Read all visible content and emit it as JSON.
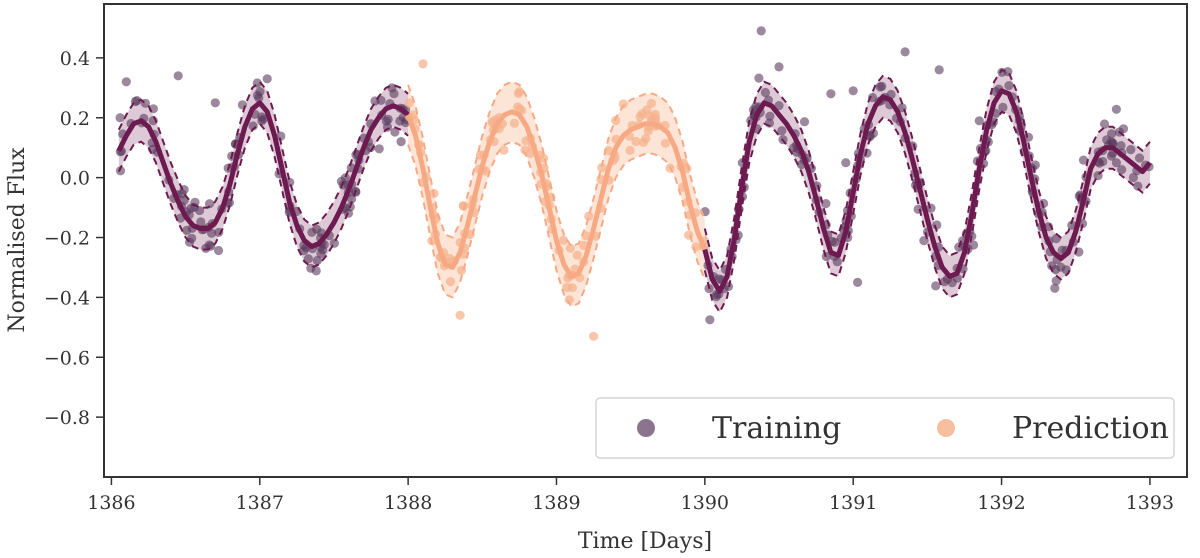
{
  "chart_data": {
    "type": "scatter",
    "title": "",
    "xlabel": "Time [Days]",
    "ylabel": "Normalised Flux",
    "xlim": [
      1385.95,
      1393.25
    ],
    "ylim": [
      -1.0,
      0.58
    ],
    "x_ticks": [
      1386,
      1387,
      1388,
      1389,
      1390,
      1391,
      1392,
      1393
    ],
    "x_tick_labels": [
      "1386",
      "1387",
      "1388",
      "1389",
      "1390",
      "1391",
      "1392",
      "1393"
    ],
    "y_ticks": [
      0.4,
      0.2,
      0.0,
      -0.2,
      -0.4,
      -0.6,
      -0.8
    ],
    "y_tick_labels": [
      "0.4",
      "0.2",
      "0.0",
      "−0.2",
      "−0.4",
      "−0.6",
      "−0.8"
    ],
    "grid": false,
    "legend_position": "bottom-right",
    "colors": {
      "training_points": "#5a3a5e",
      "training_line": "#6d1a50",
      "training_band": "#b58aa4",
      "prediction_points": "#f6b38e",
      "prediction_line": "#f7a983",
      "prediction_band": "#f9c6a6",
      "axis": "#333333"
    },
    "series": [
      {
        "name": "Training",
        "role": "posterior mean (solid) with uncertainty band (dashed)",
        "x_ranges": [
          [
            1386.05,
            1388.0
          ],
          [
            1390.0,
            1393.0
          ]
        ],
        "x": [
          1386.05,
          1386.1,
          1386.15,
          1386.2,
          1386.25,
          1386.3,
          1386.35,
          1386.4,
          1386.45,
          1386.5,
          1386.55,
          1386.6,
          1386.65,
          1386.7,
          1386.75,
          1386.8,
          1386.85,
          1386.9,
          1386.95,
          1387.0,
          1387.05,
          1387.1,
          1387.15,
          1387.2,
          1387.25,
          1387.3,
          1387.35,
          1387.4,
          1387.45,
          1387.5,
          1387.55,
          1387.6,
          1387.65,
          1387.7,
          1387.75,
          1387.8,
          1387.85,
          1387.9,
          1387.95,
          1388.0,
          1390.0,
          1390.05,
          1390.1,
          1390.15,
          1390.2,
          1390.25,
          1390.3,
          1390.35,
          1390.4,
          1390.45,
          1390.5,
          1390.55,
          1390.6,
          1390.65,
          1390.7,
          1390.75,
          1390.8,
          1390.85,
          1390.9,
          1390.95,
          1391.0,
          1391.05,
          1391.1,
          1391.15,
          1391.2,
          1391.25,
          1391.3,
          1391.35,
          1391.4,
          1391.45,
          1391.5,
          1391.55,
          1391.6,
          1391.65,
          1391.7,
          1391.75,
          1391.8,
          1391.85,
          1391.9,
          1391.95,
          1392.0,
          1392.05,
          1392.1,
          1392.15,
          1392.2,
          1392.25,
          1392.3,
          1392.35,
          1392.4,
          1392.45,
          1392.5,
          1392.55,
          1392.6,
          1392.65,
          1392.7,
          1392.75,
          1392.8,
          1392.85,
          1392.9,
          1392.95,
          1393.0
        ],
        "mean": [
          0.09,
          0.14,
          0.18,
          0.19,
          0.17,
          0.12,
          0.05,
          -0.02,
          -0.08,
          -0.13,
          -0.16,
          -0.17,
          -0.17,
          -0.15,
          -0.1,
          -0.02,
          0.08,
          0.17,
          0.23,
          0.25,
          0.22,
          0.14,
          0.03,
          -0.08,
          -0.16,
          -0.21,
          -0.23,
          -0.22,
          -0.19,
          -0.15,
          -0.1,
          -0.04,
          0.03,
          0.1,
          0.16,
          0.2,
          0.23,
          0.24,
          0.23,
          0.21,
          -0.24,
          -0.34,
          -0.38,
          -0.33,
          -0.2,
          -0.03,
          0.12,
          0.21,
          0.25,
          0.24,
          0.21,
          0.18,
          0.14,
          0.09,
          0.02,
          -0.07,
          -0.17,
          -0.25,
          -0.26,
          -0.18,
          -0.05,
          0.08,
          0.18,
          0.24,
          0.27,
          0.26,
          0.22,
          0.15,
          0.06,
          -0.04,
          -0.14,
          -0.23,
          -0.3,
          -0.33,
          -0.32,
          -0.25,
          -0.12,
          0.03,
          0.16,
          0.25,
          0.29,
          0.28,
          0.22,
          0.12,
          0.0,
          -0.11,
          -0.2,
          -0.25,
          -0.27,
          -0.25,
          -0.18,
          -0.08,
          0.03,
          0.08,
          0.1,
          0.1,
          0.08,
          0.06,
          0.04,
          0.02,
          0.05
        ],
        "band_halfwidth": 0.07
      },
      {
        "name": "Prediction",
        "role": "posterior mean (solid) with uncertainty band (dashed)",
        "x": [
          1388.0,
          1388.05,
          1388.1,
          1388.15,
          1388.2,
          1388.25,
          1388.3,
          1388.35,
          1388.4,
          1388.45,
          1388.5,
          1388.55,
          1388.6,
          1388.65,
          1388.7,
          1388.75,
          1388.8,
          1388.85,
          1388.9,
          1388.95,
          1389.0,
          1389.05,
          1389.1,
          1389.15,
          1389.2,
          1389.25,
          1389.3,
          1389.35,
          1389.4,
          1389.45,
          1389.5,
          1389.55,
          1389.6,
          1389.65,
          1389.7,
          1389.75,
          1389.8,
          1389.85,
          1389.9,
          1389.95,
          1390.0
        ],
        "mean": [
          0.21,
          0.14,
          0.03,
          -0.1,
          -0.22,
          -0.29,
          -0.3,
          -0.25,
          -0.16,
          -0.06,
          0.04,
          0.12,
          0.18,
          0.21,
          0.22,
          0.21,
          0.17,
          0.1,
          0.01,
          -0.1,
          -0.21,
          -0.29,
          -0.33,
          -0.32,
          -0.26,
          -0.17,
          -0.07,
          0.03,
          0.1,
          0.14,
          0.16,
          0.17,
          0.18,
          0.18,
          0.17,
          0.15,
          0.1,
          0.02,
          -0.09,
          -0.18,
          -0.24
        ],
        "band_halfwidth": 0.1
      }
    ],
    "scatter_points": {
      "count_per_day": 70,
      "scatter_sd": 0.04,
      "outliers": [
        [
          1386.45,
          0.34
        ],
        [
          1386.7,
          0.25
        ],
        [
          1388.1,
          0.38
        ],
        [
          1390.38,
          0.49
        ],
        [
          1390.5,
          0.37
        ],
        [
          1390.85,
          0.28
        ],
        [
          1390.95,
          0.05
        ],
        [
          1391.0,
          0.29
        ],
        [
          1391.35,
          0.42
        ],
        [
          1391.58,
          0.36
        ],
        [
          1391.85,
          0.19
        ],
        [
          1391.03,
          -0.35
        ],
        [
          1389.25,
          -0.53
        ],
        [
          1388.35,
          -0.46
        ],
        [
          1386.1,
          0.32
        ],
        [
          1387.05,
          0.33
        ]
      ]
    },
    "legend": [
      {
        "label": "Training",
        "marker": "circle"
      },
      {
        "label": "Prediction",
        "marker": "circle"
      }
    ]
  }
}
